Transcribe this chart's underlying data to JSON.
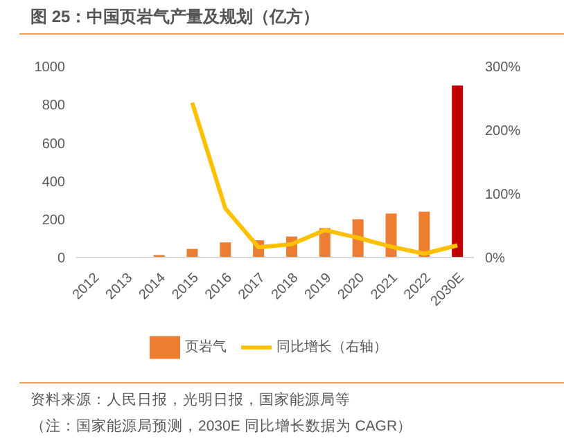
{
  "chart_data": {
    "type": "bar",
    "title": "图 25：中国页岩气产量及规划（亿方）",
    "categories": [
      "2012",
      "2013",
      "2014",
      "2015",
      "2016",
      "2017",
      "2018",
      "2019",
      "2020",
      "2021",
      "2022",
      "2030E"
    ],
    "series": [
      {
        "name": "页岩气",
        "color": "#ed7d31",
        "colors": [
          "#ed7d31",
          "#ed7d31",
          "#ed7d31",
          "#ed7d31",
          "#ed7d31",
          "#ed7d31",
          "#ed7d31",
          "#ed7d31",
          "#ed7d31",
          "#ed7d31",
          "#ed7d31",
          "#c00000"
        ],
        "values": [
          0,
          0,
          13,
          45,
          79,
          90,
          110,
          154,
          200,
          230,
          240,
          900
        ]
      },
      {
        "name": "同比增长（右轴）",
        "type": "line",
        "axis": "y2",
        "color": "#ffc000",
        "values": [
          null,
          null,
          null,
          243,
          77,
          16,
          21,
          43,
          31,
          17,
          6,
          19
        ]
      }
    ],
    "ylim": [
      0,
      1000
    ],
    "yticks": [
      0,
      200,
      400,
      600,
      800,
      1000
    ],
    "y2lim": [
      0,
      300
    ],
    "y2ticks": [
      {
        "value": 0,
        "label": "0%"
      },
      {
        "value": 100,
        "label": "100%"
      },
      {
        "value": 200,
        "label": "200%"
      },
      {
        "value": 300,
        "label": "300%"
      }
    ],
    "grid": false,
    "legend": "bottom",
    "marker": "none",
    "annotations": [
      "资料来源：人民日报，光明日报，国家能源局等",
      "（注：国家能源局预测，2030E 同比增长数据为 CAGR）"
    ]
  }
}
